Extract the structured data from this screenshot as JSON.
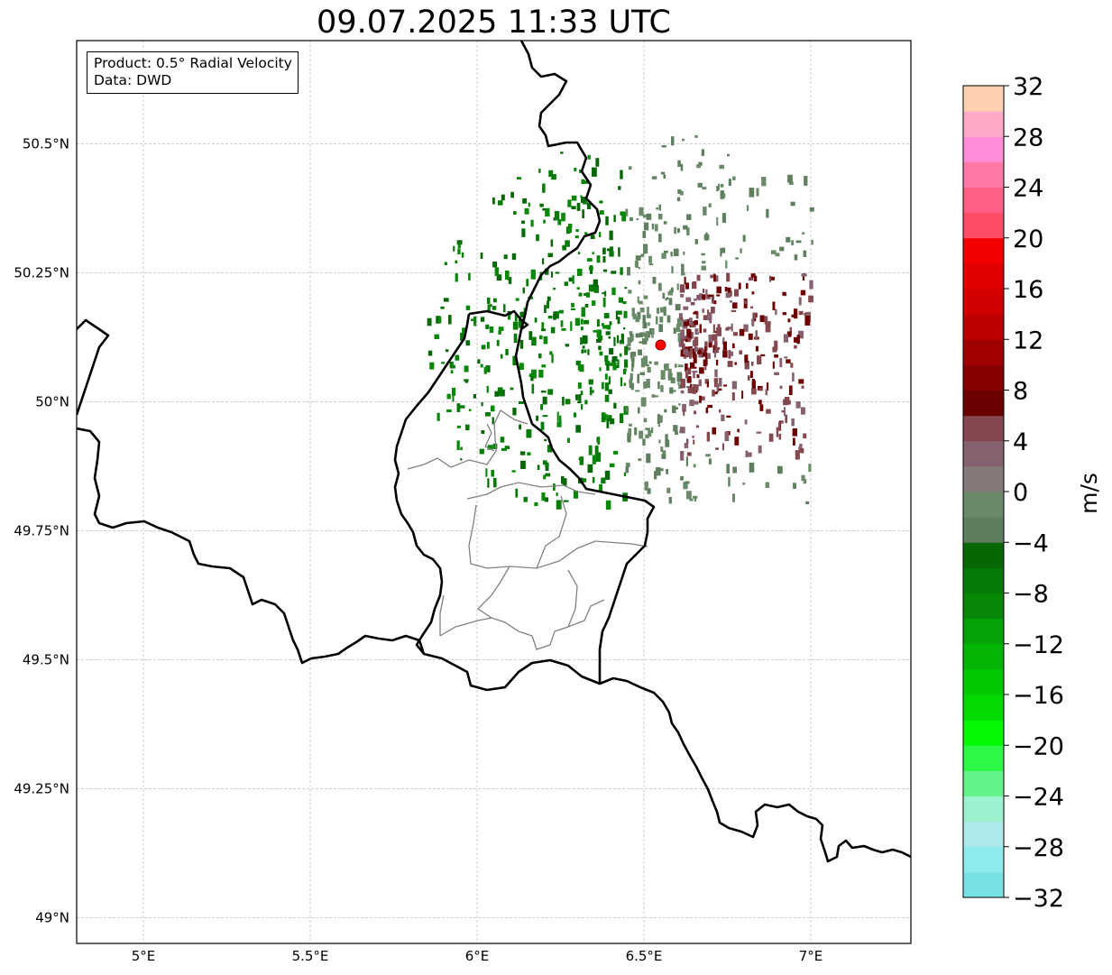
{
  "title": "09.07.2025 11:33 UTC",
  "info": {
    "product": "Product: 0.5° Radial Velocity",
    "data_source": "Data: DWD"
  },
  "map": {
    "projection": "PlateCarree",
    "lon_range": [
      4.8,
      7.3
    ],
    "lat_range": [
      48.95,
      50.7
    ],
    "gridlines": true,
    "x_tick_labels": [
      {
        "lon": 5.0,
        "text": "5°E"
      },
      {
        "lon": 5.5,
        "text": "5.5°E"
      },
      {
        "lon": 6.0,
        "text": "6°E"
      },
      {
        "lon": 6.5,
        "text": "6.5°E"
      },
      {
        "lon": 7.0,
        "text": "7°E"
      }
    ],
    "y_tick_labels": [
      {
        "lat": 50.5,
        "text": "50.5°N"
      },
      {
        "lat": 50.25,
        "text": "50.25°N"
      },
      {
        "lat": 50.0,
        "text": "50°N"
      },
      {
        "lat": 49.75,
        "text": "49.75°N"
      },
      {
        "lat": 49.5,
        "text": "49.5°N"
      },
      {
        "lat": 49.25,
        "text": "49.25°N"
      },
      {
        "lat": 49.0,
        "text": "49°N"
      }
    ],
    "radar_site": {
      "lon": 6.55,
      "lat": 50.11,
      "color": "#ff0000"
    }
  },
  "colorbar": {
    "label": "m/s",
    "min": -32,
    "max": 32,
    "step": 4,
    "tick_labels": [
      "32",
      "28",
      "24",
      "20",
      "16",
      "12",
      "8",
      "4",
      "0",
      "−4",
      "−8",
      "−12",
      "−16",
      "−20",
      "−24",
      "−28",
      "−32"
    ],
    "colors_bottom_to_top": [
      "#76e2e4",
      "#8eeaec",
      "#ade8ea",
      "#9cf2cf",
      "#62f48a",
      "#2cf846",
      "#03f803",
      "#02da02",
      "#03c903",
      "#04b604",
      "#06a306",
      "#068706",
      "#067a06",
      "#056805",
      "#5e7e5e",
      "#6a8a6a",
      "#87797a",
      "#866170",
      "#84484f",
      "#6c0000",
      "#880000",
      "#a00000",
      "#bc0000",
      "#d20000",
      "#e00000",
      "#f50000",
      "#ff4a66",
      "#fe5f85",
      "#ff78a6",
      "#ff8cd8",
      "#ffa9c9",
      "#ffd0b0"
    ]
  }
}
